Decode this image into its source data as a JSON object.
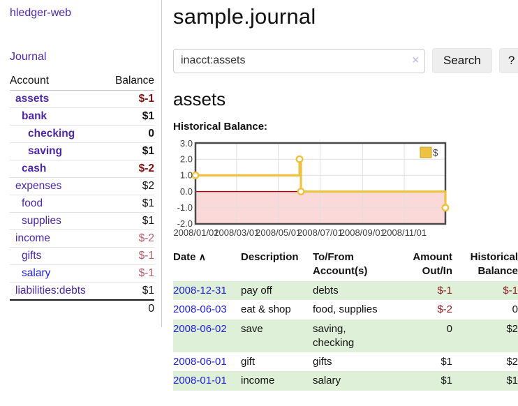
{
  "brand": {
    "label": "hledger-web"
  },
  "nav": {
    "journal": "Journal"
  },
  "sidebar": {
    "headers": {
      "account": "Account",
      "balance": "Balance"
    },
    "accounts": [
      {
        "name": "assets",
        "balance": "$-1"
      },
      {
        "name": "bank",
        "balance": "$1"
      },
      {
        "name": "checking",
        "balance": "0"
      },
      {
        "name": "saving",
        "balance": "$1"
      },
      {
        "name": "cash",
        "balance": "$-2"
      },
      {
        "name": "expenses",
        "balance": "$2"
      },
      {
        "name": "food",
        "balance": "$1"
      },
      {
        "name": "supplies",
        "balance": "$1"
      },
      {
        "name": "income",
        "balance": "$-2"
      },
      {
        "name": "gifts",
        "balance": "$-1"
      },
      {
        "name": "salary",
        "balance": "$-1"
      },
      {
        "name": "liabilities:debts",
        "balance": "$1"
      }
    ],
    "total": "0"
  },
  "main": {
    "title": "sample.journal",
    "search": {
      "value": "inacct:assets",
      "clear": "×",
      "button": "Search",
      "help": "?"
    },
    "account_heading": "assets",
    "chart_label": "Historical Balance:"
  },
  "chart_data": {
    "type": "line",
    "step": true,
    "title": "Historical Balance:",
    "ylim": [
      -2,
      3
    ],
    "x_range": [
      "2008-01-01",
      "2008-12-31"
    ],
    "yticks": [
      "3.0",
      "2.0",
      "1.0",
      "0.0",
      "-1.0",
      "-2.0"
    ],
    "xticks": [
      {
        "label": "2008/01/01",
        "day": 0
      },
      {
        "label": "2008/03/01",
        "day": 60
      },
      {
        "label": "2008/05/01",
        "day": 121
      },
      {
        "label": "2008/07/01",
        "day": 182
      },
      {
        "label": "2008/09/01",
        "day": 244
      },
      {
        "label": "2008/11/01",
        "day": 305
      }
    ],
    "legend": {
      "label": "$",
      "position": "top-right",
      "color": "#edc240"
    },
    "series": [
      {
        "name": "$",
        "color": "#edc240",
        "points": [
          {
            "date": "2008-01-01",
            "day": 0,
            "value": 1
          },
          {
            "date": "2008-06-01",
            "day": 152,
            "value": 2
          },
          {
            "date": "2008-06-03",
            "day": 154,
            "value": 0
          },
          {
            "date": "2008-12-31",
            "day": 365,
            "value": -1
          }
        ]
      }
    ],
    "grid": true,
    "negative_region": true,
    "zero_line_color": "#a40000",
    "negative_region_color": "#fbd9d9"
  },
  "register": {
    "headers": {
      "date": "Date",
      "sort_indicator": "∧",
      "description": "Description",
      "accounts_line1": "To/From",
      "accounts_line2": "Account(s)",
      "amount_line1": "Amount",
      "amount_line2": "Out/In",
      "balance_line1": "Historical",
      "balance_line2": "Balance"
    },
    "rows": [
      {
        "date": "2008-12-31",
        "description": "pay off",
        "accounts": "debts",
        "amount": "$-1",
        "balance": "$-1"
      },
      {
        "date": "2008-06-03",
        "description": "eat & shop",
        "accounts": "food, supplies",
        "amount": "$-2",
        "balance": "0"
      },
      {
        "date": "2008-06-02",
        "description": "save",
        "accounts": "saving, checking",
        "amount": "0",
        "balance": "$2"
      },
      {
        "date": "2008-06-01",
        "description": "gift",
        "accounts": "gifts",
        "amount": "$1",
        "balance": "$2"
      },
      {
        "date": "2008-01-01",
        "description": "income",
        "accounts": "salary",
        "amount": "$1",
        "balance": "$1"
      }
    ]
  },
  "colors": {
    "link_purple": "#4e27a8",
    "link_blue": "#2222d6",
    "negative_strong": "#7f0f0f",
    "negative_soft": "#b05e68",
    "table_negative": "#8b1a1a",
    "row_green": "#dff0d8",
    "series_gold": "#edc240"
  }
}
